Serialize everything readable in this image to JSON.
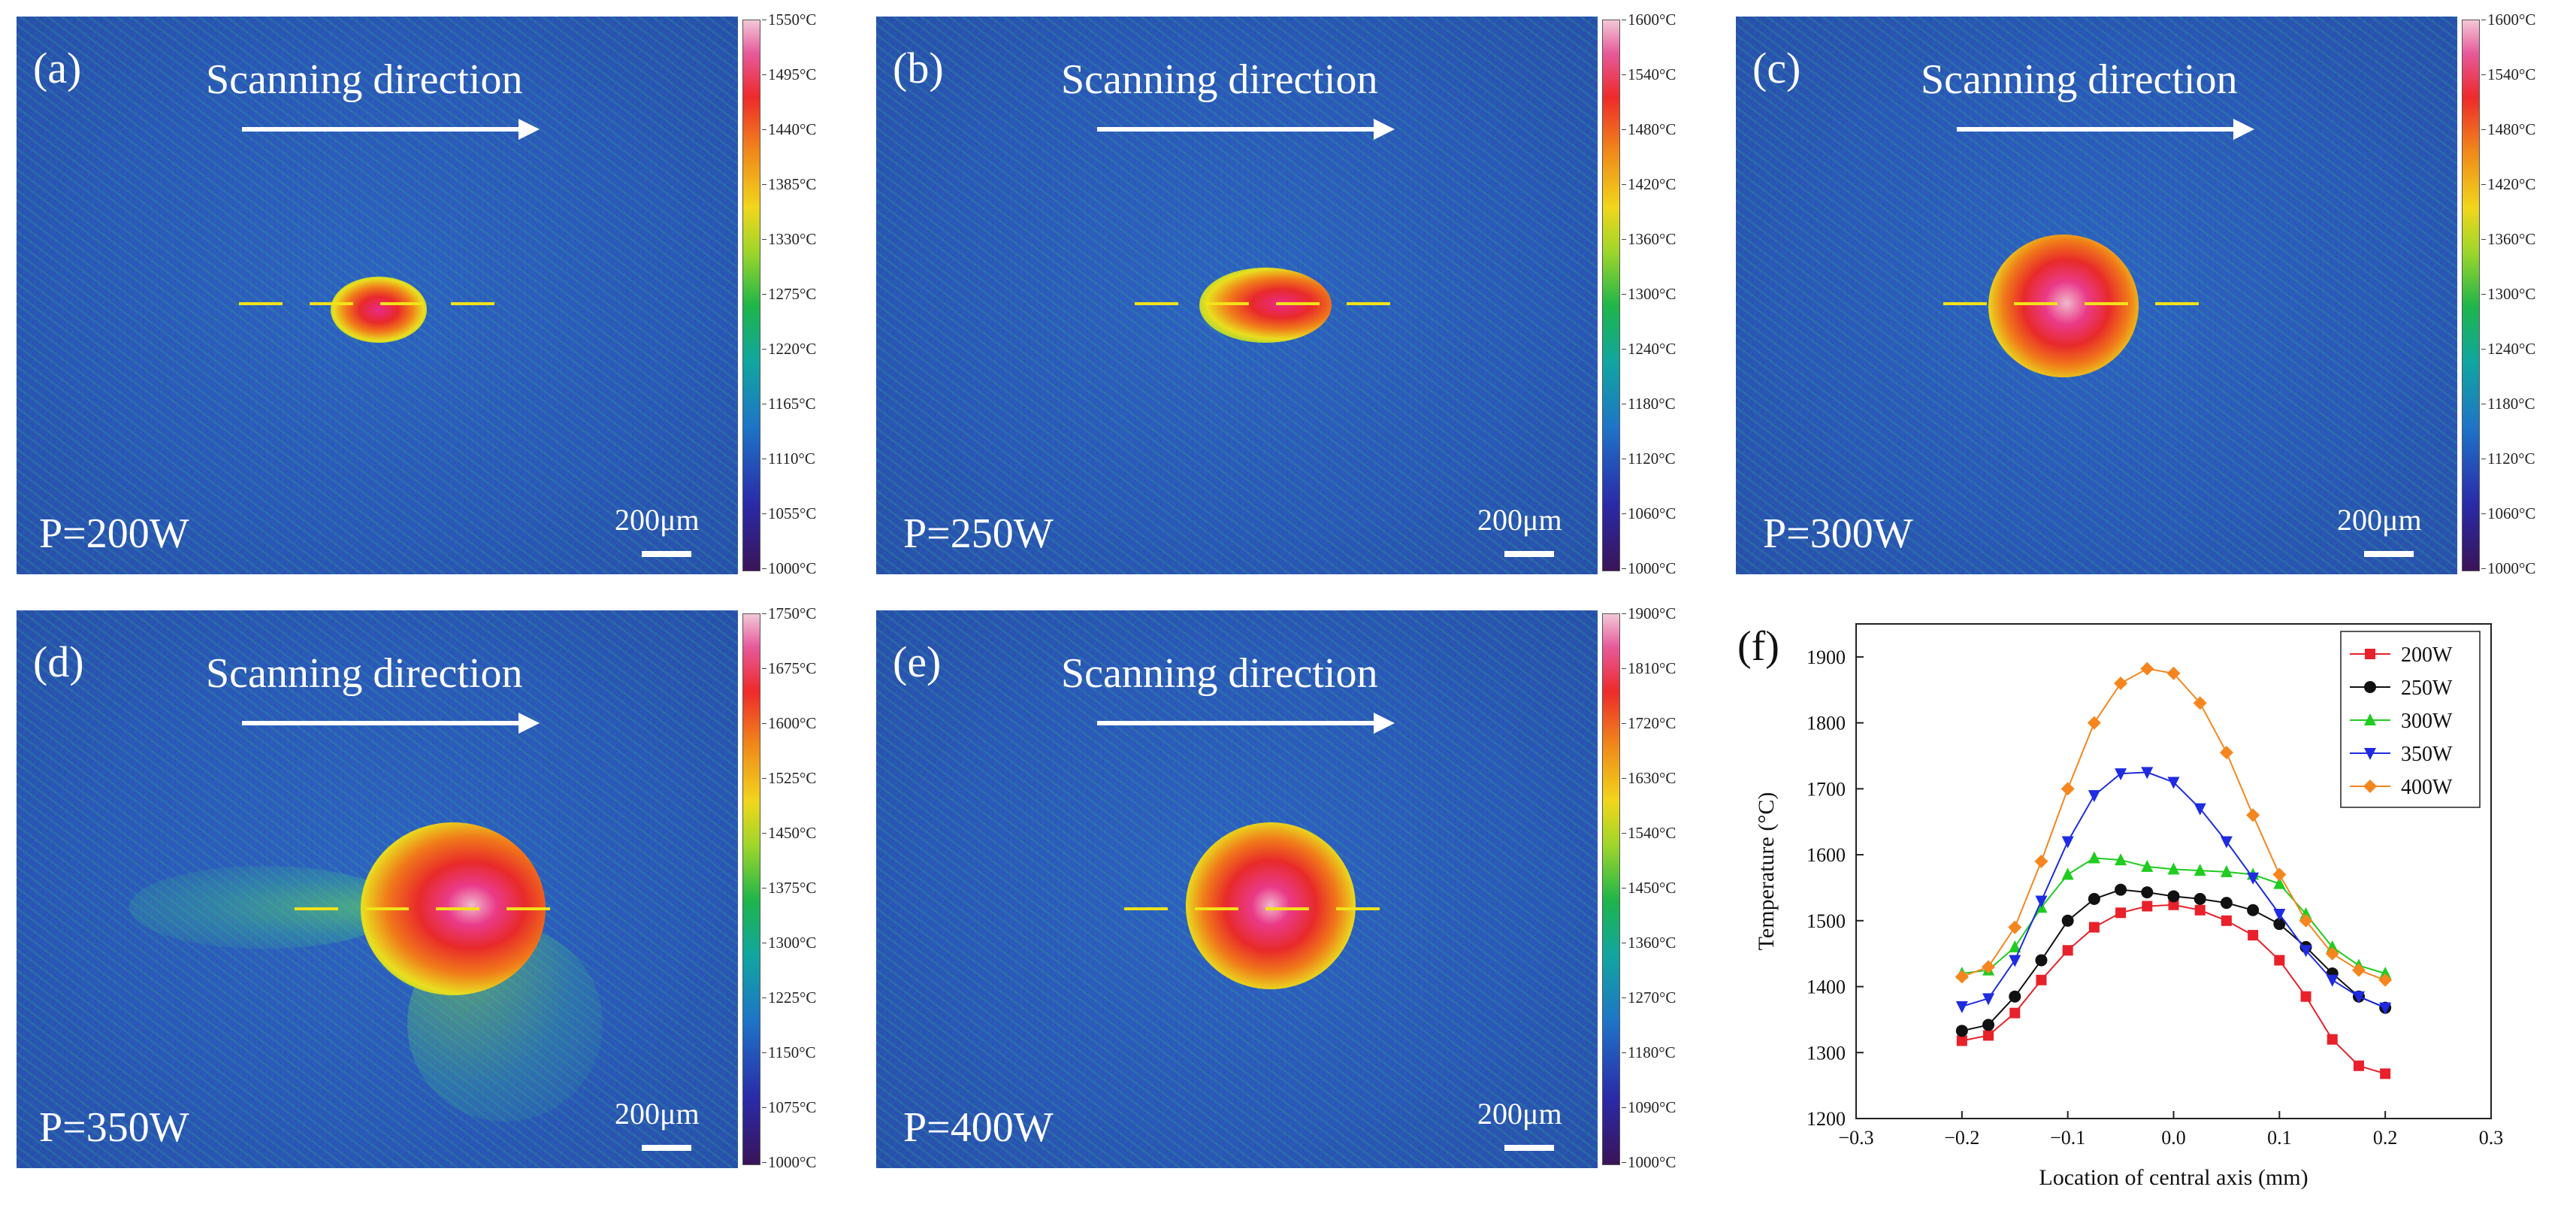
{
  "panels": [
    {
      "id": "a",
      "label": "(a)",
      "scan_text": "Scanning direction",
      "power": "P=200W",
      "scale": "200μm",
      "colorbar": [
        "1550°C",
        "1495°C",
        "1440°C",
        "1385°C",
        "1330°C",
        "1275°C",
        "1220°C",
        "1165°C",
        "1110°C",
        "1055°C",
        "1000°C"
      ]
    },
    {
      "id": "b",
      "label": "(b)",
      "scan_text": "Scanning direction",
      "power": "P=250W",
      "scale": "200μm",
      "colorbar": [
        "1600°C",
        "1540°C",
        "1480°C",
        "1420°C",
        "1360°C",
        "1300°C",
        "1240°C",
        "1180°C",
        "1120°C",
        "1060°C",
        "1000°C"
      ]
    },
    {
      "id": "c",
      "label": "(c)",
      "scan_text": "Scanning direction",
      "power": "P=300W",
      "scale": "200μm",
      "colorbar": [
        "1600°C",
        "1540°C",
        "1480°C",
        "1420°C",
        "1360°C",
        "1300°C",
        "1240°C",
        "1180°C",
        "1120°C",
        "1060°C",
        "1000°C"
      ]
    },
    {
      "id": "d",
      "label": "(d)",
      "scan_text": "Scanning direction",
      "power": "P=350W",
      "scale": "200μm",
      "colorbar": [
        "1750°C",
        "1675°C",
        "1600°C",
        "1525°C",
        "1450°C",
        "1375°C",
        "1300°C",
        "1225°C",
        "1150°C",
        "1075°C",
        "1000°C"
      ]
    },
    {
      "id": "e",
      "label": "(e)",
      "scan_text": "Scanning direction",
      "power": "P=400W",
      "scale": "200μm",
      "colorbar": [
        "1900°C",
        "1810°C",
        "1720°C",
        "1630°C",
        "1540°C",
        "1450°C",
        "1360°C",
        "1270°C",
        "1180°C",
        "1090°C",
        "1000°C"
      ]
    }
  ],
  "chart_data": {
    "type": "line",
    "panel_label": "(f)",
    "title": "",
    "xlabel": "Location of central axis (mm)",
    "ylabel": "Temperature (°C)",
    "xlim": [
      -0.3,
      0.3
    ],
    "ylim": [
      1200,
      1950
    ],
    "xticks": [
      "−0.3",
      "−0.2",
      "−0.1",
      "0.0",
      "0.1",
      "0.2",
      "0.3"
    ],
    "yticks": [
      "1200",
      "1300",
      "1400",
      "1500",
      "1600",
      "1700",
      "1800",
      "1900"
    ],
    "legend_position": "top-right",
    "x": [
      -0.2,
      -0.175,
      -0.15,
      -0.125,
      -0.1,
      -0.075,
      -0.05,
      -0.025,
      0.0,
      0.025,
      0.05,
      0.075,
      0.1,
      0.125,
      0.15,
      0.175,
      0.2
    ],
    "series": [
      {
        "name": "200W",
        "color": "#e8212a",
        "marker": "square",
        "values": [
          1318,
          1326,
          1360,
          1410,
          1455,
          1490,
          1512,
          1522,
          1524,
          1516,
          1500,
          1478,
          1440,
          1385,
          1320,
          1280,
          1268
        ]
      },
      {
        "name": "250W",
        "color": "#111111",
        "marker": "circle",
        "values": [
          1333,
          1342,
          1385,
          1440,
          1500,
          1533,
          1547,
          1543,
          1537,
          1533,
          1527,
          1516,
          1495,
          1460,
          1420,
          1385,
          1368
        ]
      },
      {
        "name": "300W",
        "color": "#1fcc1f",
        "marker": "triangle-up",
        "values": [
          1420,
          1425,
          1460,
          1520,
          1570,
          1595,
          1592,
          1582,
          1578,
          1576,
          1574,
          1570,
          1556,
          1510,
          1460,
          1432,
          1420
        ]
      },
      {
        "name": "350W",
        "color": "#1e2be0",
        "marker": "triangle-down",
        "values": [
          1370,
          1382,
          1440,
          1530,
          1620,
          1690,
          1723,
          1725,
          1710,
          1670,
          1620,
          1565,
          1510,
          1455,
          1410,
          1385,
          1368
        ]
      },
      {
        "name": "400W",
        "color": "#f5861f",
        "marker": "diamond",
        "values": [
          1415,
          1430,
          1490,
          1590,
          1700,
          1800,
          1860,
          1882,
          1875,
          1830,
          1755,
          1660,
          1570,
          1500,
          1450,
          1425,
          1410
        ]
      }
    ]
  }
}
